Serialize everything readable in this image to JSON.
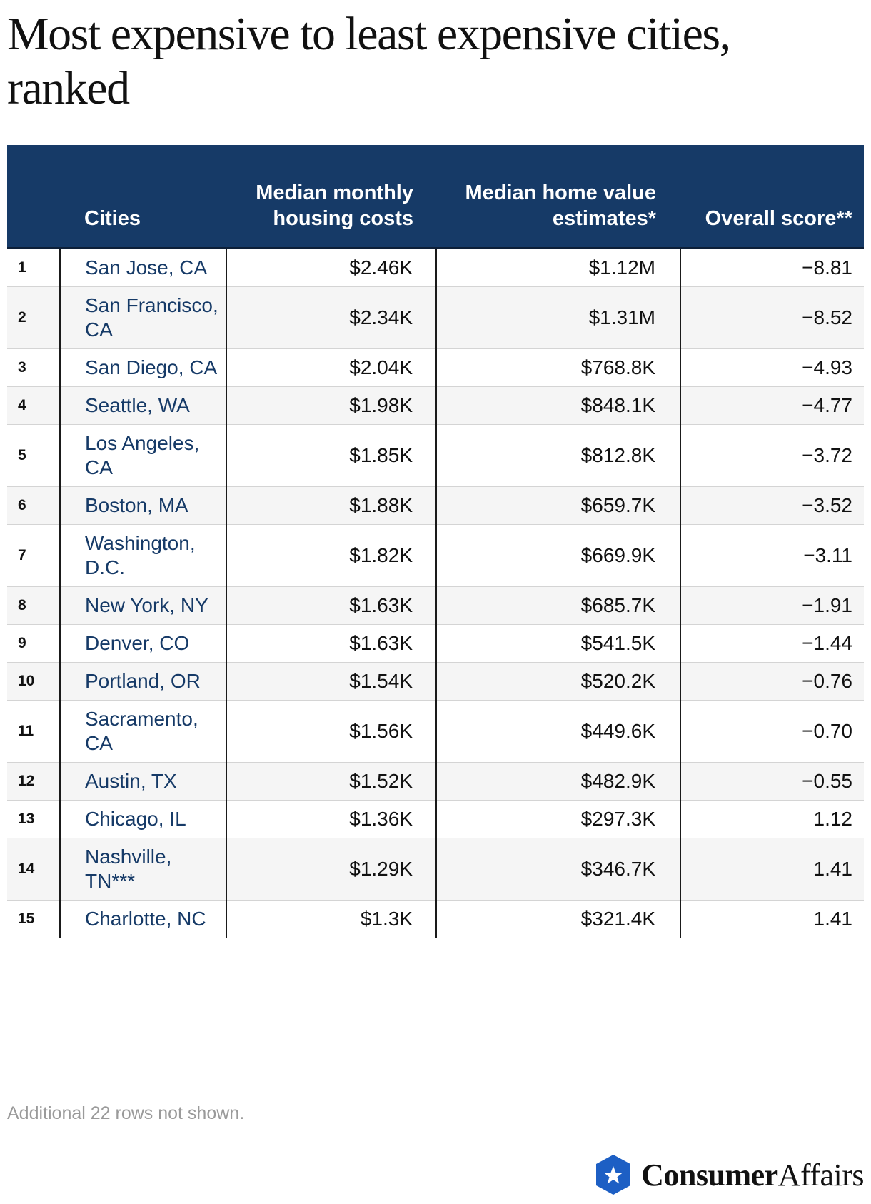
{
  "title": "Most expensive to least expensive cities, ranked",
  "table": {
    "headers": {
      "rank": "",
      "city": "Cities",
      "housing": "Median monthly housing costs",
      "home": "Median home value estimates*",
      "score": "Overall score**"
    },
    "rows": [
      {
        "rank": "1",
        "city": "San Jose, CA",
        "housing": "$2.46K",
        "home": "$1.12M",
        "score": "−8.81"
      },
      {
        "rank": "2",
        "city": "San Francisco, CA",
        "housing": "$2.34K",
        "home": "$1.31M",
        "score": "−8.52"
      },
      {
        "rank": "3",
        "city": "San Diego, CA",
        "housing": "$2.04K",
        "home": "$768.8K",
        "score": "−4.93"
      },
      {
        "rank": "4",
        "city": "Seattle, WA",
        "housing": "$1.98K",
        "home": "$848.1K",
        "score": "−4.77"
      },
      {
        "rank": "5",
        "city": "Los Angeles, CA",
        "housing": "$1.85K",
        "home": "$812.8K",
        "score": "−3.72"
      },
      {
        "rank": "6",
        "city": "Boston, MA",
        "housing": "$1.88K",
        "home": "$659.7K",
        "score": "−3.52"
      },
      {
        "rank": "7",
        "city": "Washington, D.C.",
        "housing": "$1.82K",
        "home": "$669.9K",
        "score": "−3.11"
      },
      {
        "rank": "8",
        "city": "New York, NY",
        "housing": "$1.63K",
        "home": "$685.7K",
        "score": "−1.91"
      },
      {
        "rank": "9",
        "city": "Denver, CO",
        "housing": "$1.63K",
        "home": "$541.5K",
        "score": "−1.44"
      },
      {
        "rank": "10",
        "city": "Portland, OR",
        "housing": "$1.54K",
        "home": "$520.2K",
        "score": "−0.76"
      },
      {
        "rank": "11",
        "city": "Sacramento, CA",
        "housing": "$1.56K",
        "home": "$449.6K",
        "score": "−0.70"
      },
      {
        "rank": "12",
        "city": "Austin, TX",
        "housing": "$1.52K",
        "home": "$482.9K",
        "score": "−0.55"
      },
      {
        "rank": "13",
        "city": "Chicago, IL",
        "housing": "$1.36K",
        "home": "$297.3K",
        "score": "1.12"
      },
      {
        "rank": "14",
        "city": "Nashville, TN***",
        "housing": "$1.29K",
        "home": "$346.7K",
        "score": "1.41"
      },
      {
        "rank": "15",
        "city": "Charlotte, NC",
        "housing": "$1.3K",
        "home": "$321.4K",
        "score": "1.41"
      }
    ]
  },
  "footnote": "Additional 22 rows not shown.",
  "logo": {
    "text_strong": "Consumer",
    "text_light": "Affairs",
    "icon": "star-shield-icon"
  },
  "colors": {
    "header_bg": "#163a67",
    "city_text": "#163a67",
    "row_alt_bg": "#f5f5f5",
    "logo_blue": "#1d5fc4",
    "footnote": "#9a9a9a"
  }
}
